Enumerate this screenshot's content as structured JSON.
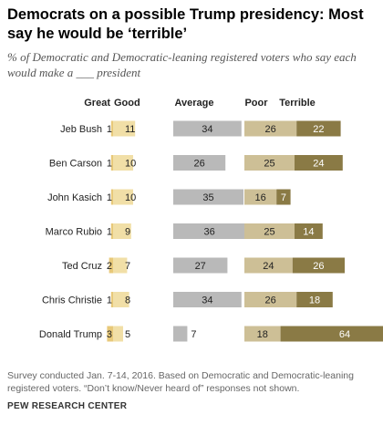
{
  "title": "Democrats on a possible Trump presidency: Most say he would be ‘terrible’",
  "subtitle": "% of Democratic and Democratic-leaning registered voters who say each would make a ___ president",
  "note": "Survey conducted Jan. 7-14, 2016. Based on Democratic and Democratic-leaning registered voters. “Don’t know/Never heard of” responses not shown.",
  "source": "PEW RESEARCH CENTER",
  "colors": {
    "great": "#e8c97a",
    "good": "#f1dfa7",
    "average": "#b9b9b9",
    "poor": "#cdbf96",
    "terrible": "#8a7a45"
  },
  "chart_data": {
    "type": "bar",
    "categories": [
      "Jeb Bush",
      "Ben Carson",
      "John Kasich",
      "Marco Rubio",
      "Ted Cruz",
      "Chris Christie",
      "Donald Trump"
    ],
    "series": [
      {
        "name": "Great",
        "values": [
          1,
          1,
          1,
          1,
          2,
          1,
          3
        ]
      },
      {
        "name": "Good",
        "values": [
          11,
          10,
          10,
          9,
          7,
          8,
          5
        ]
      },
      {
        "name": "Average",
        "values": [
          34,
          26,
          35,
          36,
          27,
          34,
          7
        ]
      },
      {
        "name": "Poor",
        "values": [
          26,
          25,
          16,
          25,
          24,
          26,
          18
        ]
      },
      {
        "name": "Terrible",
        "values": [
          22,
          24,
          7,
          14,
          26,
          18,
          64
        ]
      }
    ]
  }
}
